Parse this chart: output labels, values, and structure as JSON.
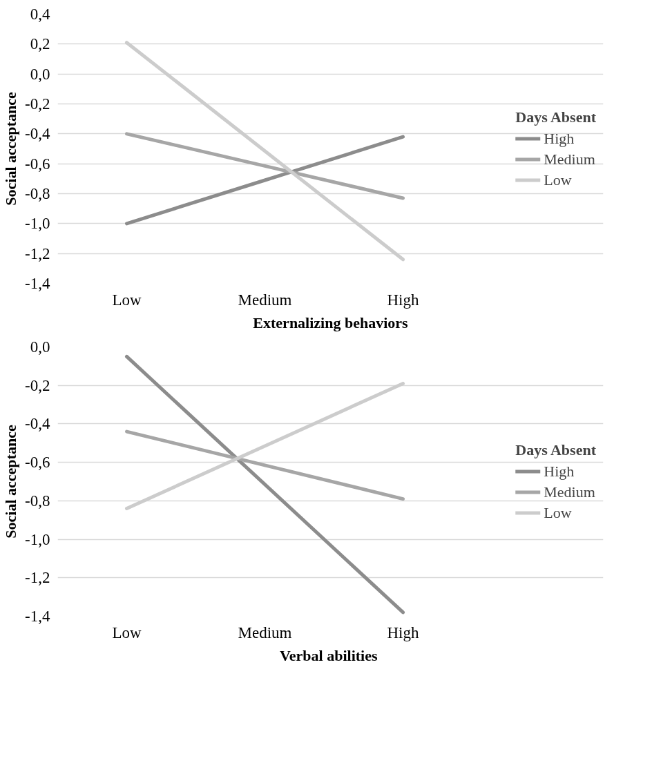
{
  "chart_data": [
    {
      "type": "line",
      "xlabel": "Externalizing behaviors",
      "ylabel": "Social acceptance",
      "legend_title": "Days Absent",
      "categories": [
        "Low",
        "Medium",
        "High"
      ],
      "series": [
        {
          "name": "High",
          "color": "#8c8c8c",
          "values": [
            -1.0,
            -0.71,
            -0.42
          ]
        },
        {
          "name": "Medium",
          "color": "#a6a6a6",
          "values": [
            -0.4,
            -0.615,
            -0.83
          ]
        },
        {
          "name": "Low",
          "color": "#cccccc",
          "values": [
            0.21,
            -0.515,
            -1.24
          ]
        }
      ],
      "ylim": [
        -1.4,
        0.4
      ],
      "yticks": [
        {
          "value": -1.4,
          "label": "-1,4"
        },
        {
          "value": -1.2,
          "label": "-1,2"
        },
        {
          "value": -1.0,
          "label": "-1,0"
        },
        {
          "value": -0.8,
          "label": "-0,8"
        },
        {
          "value": -0.6,
          "label": "-0,6"
        },
        {
          "value": -0.4,
          "label": "-0,4"
        },
        {
          "value": -0.2,
          "label": "-0,2"
        },
        {
          "value": 0.0,
          "label": "0,0"
        },
        {
          "value": 0.2,
          "label": "0,2"
        },
        {
          "value": 0.4,
          "label": "0,4"
        }
      ],
      "grid": "y",
      "legend": "right",
      "marker": "none",
      "line_style": "solid"
    },
    {
      "type": "line",
      "xlabel": "Verbal  abilities",
      "ylabel": "Social acceptance",
      "legend_title": "Days Absent",
      "categories": [
        "Low",
        "Medium",
        "High"
      ],
      "series": [
        {
          "name": "High",
          "color": "#8c8c8c",
          "values": [
            -0.05,
            -0.715,
            -1.38
          ]
        },
        {
          "name": "Medium",
          "color": "#a6a6a6",
          "values": [
            -0.44,
            -0.615,
            -0.79
          ]
        },
        {
          "name": "Low",
          "color": "#cccccc",
          "values": [
            -0.84,
            -0.515,
            -0.19
          ]
        }
      ],
      "ylim": [
        -1.4,
        0.0
      ],
      "yticks": [
        {
          "value": -1.4,
          "label": "-1,4"
        },
        {
          "value": -1.2,
          "label": "-1,2"
        },
        {
          "value": -1.0,
          "label": "-1,0"
        },
        {
          "value": -0.8,
          "label": "-0,8"
        },
        {
          "value": -0.6,
          "label": "-0,6"
        },
        {
          "value": -0.4,
          "label": "-0,4"
        },
        {
          "value": -0.2,
          "label": "-0,2"
        },
        {
          "value": 0.0,
          "label": "0,0"
        }
      ],
      "grid": "y",
      "legend": "right",
      "marker": "none",
      "line_style": "solid"
    }
  ]
}
